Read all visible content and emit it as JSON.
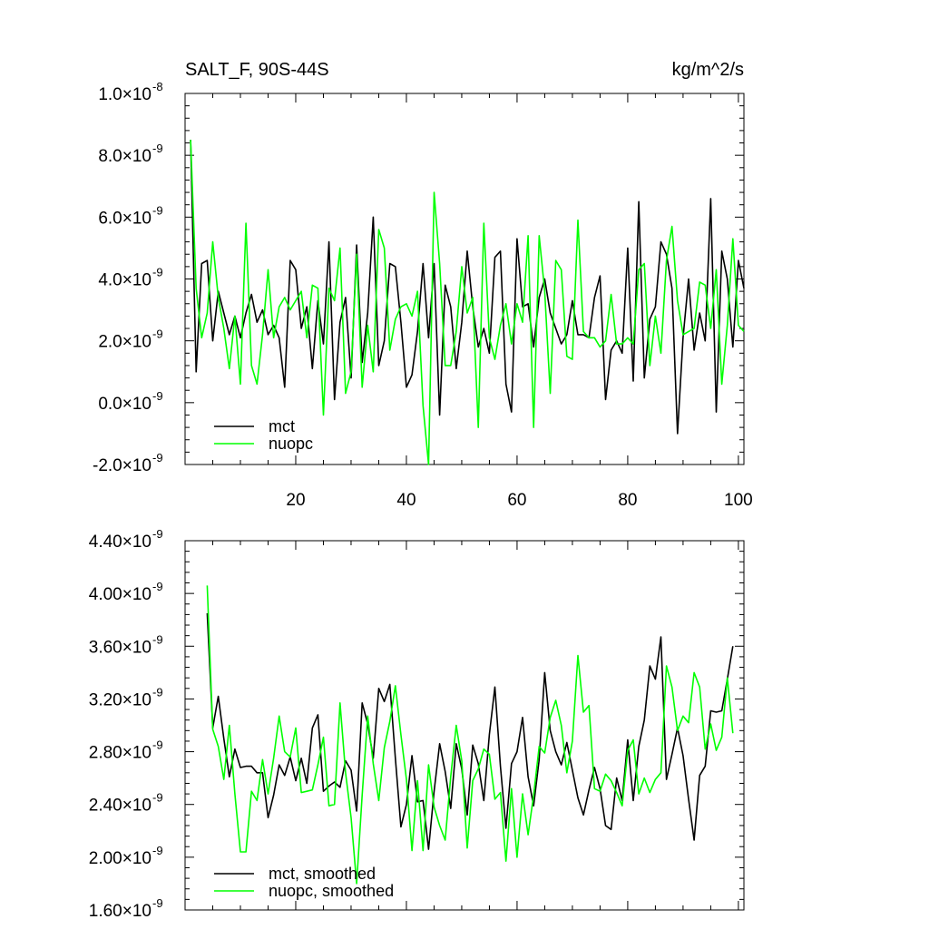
{
  "chart_data": [
    {
      "type": "line",
      "title_left": "SALT_F, 90S-44S",
      "title_right": "kg/m^2/s",
      "xlim": [
        0,
        101
      ],
      "ylim": [
        -2e-09,
        1e-08
      ],
      "y_ticks": [
        {
          "mant": "-2.0",
          "exp": "-9",
          "v": -2e-09
        },
        {
          "mant": "0.0",
          "exp": "-9",
          "v": 0
        },
        {
          "mant": "2.0",
          "exp": "-9",
          "v": 2e-09
        },
        {
          "mant": "4.0",
          "exp": "-9",
          "v": 4e-09
        },
        {
          "mant": "6.0",
          "exp": "-9",
          "v": 6e-09
        },
        {
          "mant": "8.0",
          "exp": "-9",
          "v": 8e-09
        },
        {
          "mant": "1.0",
          "exp": "-8",
          "v": 1e-08
        }
      ],
      "x_ticks": [
        20,
        40,
        60,
        80,
        100
      ],
      "x_tick_labels": [
        "20",
        "40",
        "60",
        "80",
        "100"
      ],
      "legend_placement": "bottom-left",
      "series": [
        {
          "name": "mct",
          "color": "#000000",
          "x_start": 1,
          "values": [
            8.5,
            1.0,
            4.5,
            4.6,
            2.0,
            3.6,
            2.9,
            2.2,
            2.8,
            2.1,
            2.9,
            3.5,
            2.6,
            3.0,
            2.2,
            2.5,
            2.1,
            0.5,
            4.6,
            4.3,
            2.4,
            3.1,
            1.1,
            3.3,
            1.9,
            5.2,
            0.1,
            2.6,
            3.4,
            0.8,
            5.1,
            1.3,
            2.9,
            6.0,
            1.2,
            2.0,
            4.5,
            4.4,
            2.6,
            0.5,
            0.9,
            2.3,
            4.5,
            2.1,
            4.5,
            -0.4,
            3.8,
            3.1,
            1.1,
            2.6,
            4.9,
            3.1,
            1.8,
            2.4,
            1.6,
            4.7,
            4.9,
            0.6,
            -0.3,
            5.3,
            3.1,
            3.2,
            1.8,
            3.4,
            4.0,
            2.9,
            2.4,
            1.9,
            2.2,
            3.3,
            2.2,
            2.2,
            2.1,
            3.4,
            4.1,
            0.1,
            1.7,
            2.0,
            1.6,
            5.0,
            0.7,
            6.5,
            0.8,
            2.7,
            3.1,
            5.2,
            4.8,
            3.7,
            -1.0,
            2.1,
            4.0,
            1.7,
            2.9,
            2.0,
            6.6,
            -0.3,
            4.9,
            4.0,
            1.8,
            4.6,
            3.7
          ]
        },
        {
          "name": "nuopc",
          "color": "#00ff00",
          "x_start": 1,
          "values": [
            8.5,
            3.7,
            2.1,
            2.9,
            5.2,
            3.4,
            2.4,
            1.1,
            2.8,
            0.6,
            5.8,
            1.2,
            0.6,
            2.2,
            4.3,
            2.1,
            3.1,
            3.4,
            3.0,
            3.3,
            3.6,
            2.1,
            3.8,
            3.7,
            -0.4,
            3.7,
            3.3,
            5.0,
            0.3,
            1.0,
            4.8,
            0.5,
            2.5,
            1.0,
            5.6,
            5.0,
            1.7,
            2.7,
            3.1,
            3.2,
            2.8,
            3.6,
            -0.1,
            -2.0,
            6.8,
            4.5,
            1.2,
            1.2,
            2.3,
            4.4,
            2.9,
            3.4,
            -0.8,
            5.8,
            2.1,
            1.4,
            2.5,
            3.2,
            1.9,
            3.2,
            2.6,
            5.4,
            -0.8,
            5.4,
            3.6,
            0.3,
            4.6,
            4.3,
            1.5,
            1.4,
            5.9,
            2.3,
            2.1,
            2.1,
            1.8,
            2.0,
            3.5,
            1.9,
            1.9,
            2.1,
            1.9,
            4.3,
            4.5,
            1.2,
            2.8,
            1.6,
            4.6,
            5.7,
            3.3,
            2.2,
            2.3,
            2.4,
            3.9,
            3.8,
            2.4,
            4.3,
            0.6,
            2.5,
            5.3,
            2.5,
            2.3
          ]
        }
      ]
    },
    {
      "type": "line",
      "xlim": [
        0,
        101
      ],
      "ylim": [
        1.6e-09,
        4.4e-09
      ],
      "y_ticks": [
        {
          "mant": "1.60",
          "exp": "-9",
          "v": 1.6e-09
        },
        {
          "mant": "2.00",
          "exp": "-9",
          "v": 2e-09
        },
        {
          "mant": "2.40",
          "exp": "-9",
          "v": 2.4e-09
        },
        {
          "mant": "2.80",
          "exp": "-9",
          "v": 2.8e-09
        },
        {
          "mant": "3.20",
          "exp": "-9",
          "v": 3.2e-09
        },
        {
          "mant": "3.60",
          "exp": "-9",
          "v": 3.6e-09
        },
        {
          "mant": "4.00",
          "exp": "-9",
          "v": 4e-09
        },
        {
          "mant": "4.40",
          "exp": "-9",
          "v": 4.4e-09
        }
      ],
      "x_ticks": [
        20,
        40,
        60,
        80,
        100
      ],
      "legend_placement": "bottom-left",
      "series": [
        {
          "name": "mct, smoothed",
          "color": "#000000",
          "x_start": 4,
          "values": [
            3.85,
            2.98,
            3.22,
            2.9,
            2.61,
            2.82,
            2.68,
            2.69,
            2.69,
            2.64,
            2.64,
            2.3,
            2.47,
            2.7,
            2.62,
            2.76,
            2.58,
            2.75,
            2.56,
            2.98,
            3.08,
            2.5,
            2.54,
            2.57,
            2.53,
            2.73,
            2.66,
            2.35,
            3.17,
            3.01,
            2.75,
            3.28,
            3.18,
            3.31,
            2.75,
            2.23,
            2.4,
            2.77,
            2.42,
            2.43,
            2.06,
            2.5,
            2.86,
            2.65,
            2.37,
            2.86,
            2.67,
            2.32,
            2.85,
            2.71,
            2.43,
            2.93,
            3.29,
            2.69,
            2.22,
            2.71,
            2.8,
            3.06,
            2.61,
            2.39,
            2.74,
            3.4,
            2.96,
            2.8,
            2.7,
            2.87,
            2.66,
            2.45,
            2.32,
            2.51,
            2.68,
            2.52,
            2.24,
            2.21,
            2.6,
            2.43,
            2.89,
            2.43,
            2.84,
            3.04,
            3.45,
            3.35,
            3.67,
            2.59,
            2.78,
            2.98,
            2.77,
            2.44,
            2.13,
            2.62,
            2.69,
            3.11,
            3.1,
            3.11,
            3.35,
            3.6
          ]
        },
        {
          "name": "nuopc, smoothed",
          "color": "#00ff00",
          "x_start": 4,
          "values": [
            4.06,
            2.97,
            2.84,
            2.59,
            3.0,
            2.48,
            2.04,
            2.04,
            2.5,
            2.43,
            2.74,
            2.48,
            2.75,
            3.07,
            2.8,
            2.76,
            2.98,
            2.49,
            2.5,
            2.51,
            2.7,
            2.91,
            2.39,
            2.4,
            3.17,
            2.64,
            2.3,
            1.8,
            2.47,
            3.07,
            2.71,
            2.43,
            2.83,
            3.03,
            3.3,
            2.93,
            2.59,
            2.05,
            2.58,
            2.05,
            2.7,
            2.38,
            2.24,
            2.13,
            2.61,
            3.0,
            2.73,
            2.07,
            2.58,
            2.67,
            2.82,
            2.78,
            2.44,
            2.49,
            1.97,
            2.52,
            2.0,
            2.48,
            2.17,
            2.47,
            2.84,
            2.79,
            3.06,
            3.19,
            3.0,
            2.64,
            2.88,
            3.53,
            3.1,
            3.15,
            2.52,
            2.5,
            2.63,
            2.58,
            2.49,
            2.39,
            2.81,
            2.89,
            2.48,
            2.6,
            2.49,
            2.59,
            2.64,
            3.45,
            3.29,
            2.96,
            3.07,
            3.02,
            3.4,
            3.29,
            2.82,
            3.01,
            2.81,
            2.91,
            3.36,
            2.94
          ]
        }
      ]
    }
  ]
}
